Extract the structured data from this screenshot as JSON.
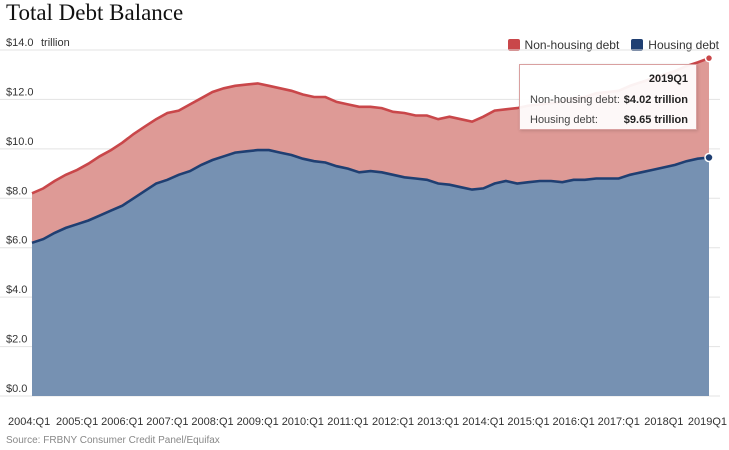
{
  "title": "Total Debt Balance",
  "source": "Source: FRBNY Consumer Credit Panel/Equifax",
  "unit_label": "trillion",
  "colors": {
    "non_housing_fill": "#de9a96",
    "non_housing_line": "#c9474a",
    "housing_fill": "#7691b2",
    "housing_line": "#1f3f72",
    "legend_non_housing": "#c9474a",
    "legend_housing": "#1f3f72"
  },
  "legend": [
    {
      "label": "Non-housing debt",
      "color": "#c9474a"
    },
    {
      "label": "Housing debt",
      "color": "#1f3f72"
    }
  ],
  "tooltip": {
    "date": "2019Q1",
    "rows": [
      {
        "label": "Non-housing debt:",
        "value": "$4.02 trillion"
      },
      {
        "label": "Housing debt:",
        "value": "$9.65 trillion"
      }
    ]
  },
  "chart_data": {
    "type": "area",
    "stacked": true,
    "title": "Total Debt Balance",
    "xlabel": "",
    "ylabel": "",
    "ylim": [
      0,
      14
    ],
    "yticks": [
      "$0.0",
      "$2.0",
      "$4.0",
      "$6.0",
      "$8.0",
      "$10.0",
      "$12.0",
      "$14.0"
    ],
    "xticks": [
      "2004:Q1",
      "2005:Q1",
      "2006:Q1",
      "2007:Q1",
      "2008:Q1",
      "2009:Q1",
      "2010:Q1",
      "2011:Q1",
      "2012:Q1",
      "2013:Q1",
      "2014:Q1",
      "2015:Q1",
      "2016:Q1",
      "2017:Q1",
      "2018Q1",
      "2019Q1"
    ],
    "grid": true,
    "legend_position": "top-right",
    "x": [
      "2004Q1",
      "2004Q2",
      "2004Q3",
      "2004Q4",
      "2005Q1",
      "2005Q2",
      "2005Q3",
      "2005Q4",
      "2006Q1",
      "2006Q2",
      "2006Q3",
      "2006Q4",
      "2007Q1",
      "2007Q2",
      "2007Q3",
      "2007Q4",
      "2008Q1",
      "2008Q2",
      "2008Q3",
      "2008Q4",
      "2009Q1",
      "2009Q2",
      "2009Q3",
      "2009Q4",
      "2010Q1",
      "2010Q2",
      "2010Q3",
      "2010Q4",
      "2011Q1",
      "2011Q2",
      "2011Q3",
      "2011Q4",
      "2012Q1",
      "2012Q2",
      "2012Q3",
      "2012Q4",
      "2013Q1",
      "2013Q2",
      "2013Q3",
      "2013Q4",
      "2014Q1",
      "2014Q2",
      "2014Q3",
      "2014Q4",
      "2015Q1",
      "2015Q2",
      "2015Q3",
      "2015Q4",
      "2016Q1",
      "2016Q2",
      "2016Q3",
      "2016Q4",
      "2017Q1",
      "2017Q2",
      "2017Q3",
      "2017Q4",
      "2018Q1",
      "2018Q2",
      "2018Q3",
      "2018Q4",
      "2019Q1"
    ],
    "series": [
      {
        "name": "Housing debt",
        "values": [
          6.2,
          6.35,
          6.6,
          6.8,
          6.95,
          7.1,
          7.3,
          7.5,
          7.7,
          8.0,
          8.3,
          8.6,
          8.75,
          8.95,
          9.1,
          9.35,
          9.55,
          9.7,
          9.85,
          9.9,
          9.95,
          9.95,
          9.85,
          9.75,
          9.6,
          9.5,
          9.45,
          9.3,
          9.2,
          9.05,
          9.1,
          9.05,
          8.95,
          8.85,
          8.8,
          8.75,
          8.6,
          8.55,
          8.45,
          8.35,
          8.4,
          8.6,
          8.7,
          8.6,
          8.65,
          8.7,
          8.7,
          8.65,
          8.75,
          8.75,
          8.8,
          8.8,
          8.8,
          8.95,
          9.05,
          9.15,
          9.25,
          9.35,
          9.5,
          9.6,
          9.65
        ]
      },
      {
        "name": "Non-housing debt",
        "values": [
          2.0,
          2.05,
          2.1,
          2.15,
          2.2,
          2.3,
          2.4,
          2.45,
          2.55,
          2.6,
          2.6,
          2.6,
          2.7,
          2.6,
          2.7,
          2.7,
          2.75,
          2.75,
          2.7,
          2.7,
          2.7,
          2.6,
          2.6,
          2.6,
          2.6,
          2.6,
          2.65,
          2.6,
          2.6,
          2.65,
          2.6,
          2.6,
          2.55,
          2.6,
          2.55,
          2.6,
          2.6,
          2.75,
          2.75,
          2.75,
          2.9,
          2.95,
          2.9,
          3.05,
          3.1,
          3.1,
          3.15,
          3.25,
          3.3,
          3.35,
          3.45,
          3.5,
          3.55,
          3.6,
          3.65,
          3.7,
          3.75,
          3.8,
          3.85,
          3.9,
          4.02
        ]
      }
    ]
  }
}
